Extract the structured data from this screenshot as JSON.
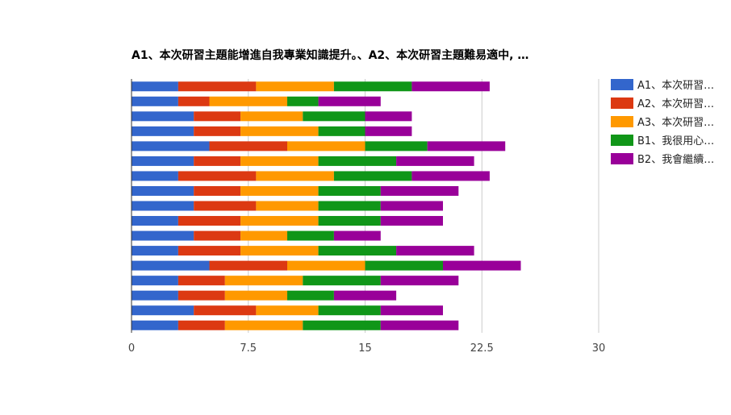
{
  "chart_data": {
    "type": "bar",
    "orientation": "horizontal",
    "stacked": true,
    "title": "A1、本次研習主題能增進自我專業知識提升。、A2、本次研習主題難易適中,  …",
    "xlabel": "",
    "ylabel": "",
    "xlim": [
      0,
      30
    ],
    "x_ticks": [
      "0",
      "7.5",
      "15",
      "22.5",
      "30"
    ],
    "x_tick_values": [
      0,
      7.5,
      15,
      22.5,
      30
    ],
    "grid": true,
    "legend_position": "right",
    "category_count": 17,
    "series": [
      {
        "name": "A1、本次研習…",
        "color": "#3366cc",
        "values": [
          3,
          3,
          4,
          4,
          5,
          4,
          3,
          4,
          4,
          3,
          4,
          3,
          5,
          3,
          3,
          4,
          3
        ]
      },
      {
        "name": "A2、本次研習…",
        "color": "#dc3912",
        "values": [
          5,
          2,
          3,
          3,
          5,
          3,
          5,
          3,
          4,
          4,
          3,
          4,
          5,
          3,
          3,
          4,
          3
        ]
      },
      {
        "name": "A3、本次研習…",
        "color": "#ff9900",
        "values": [
          5,
          5,
          4,
          5,
          5,
          5,
          5,
          5,
          4,
          5,
          3,
          5,
          5,
          5,
          4,
          4,
          5
        ]
      },
      {
        "name": "B1、我很用心…",
        "color": "#109618",
        "values": [
          5,
          2,
          4,
          3,
          4,
          5,
          5,
          4,
          4,
          4,
          3,
          5,
          5,
          5,
          3,
          4,
          5
        ]
      },
      {
        "name": "B2、我會繼續…",
        "color": "#990099",
        "values": [
          5,
          4,
          3,
          3,
          5,
          5,
          5,
          5,
          4,
          4,
          3,
          5,
          5,
          5,
          4,
          4,
          5
        ]
      }
    ]
  }
}
